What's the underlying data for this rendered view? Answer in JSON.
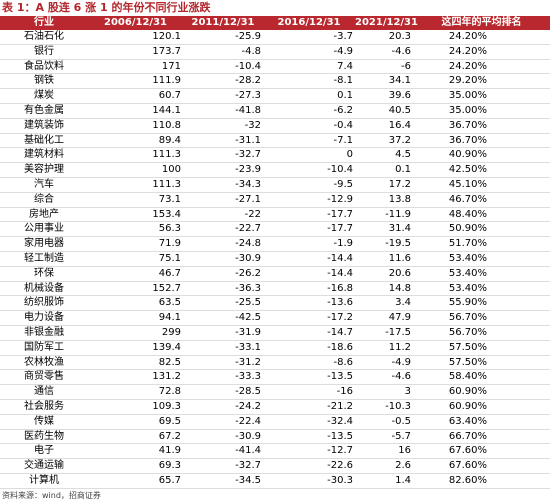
{
  "title": "表 1：A 股连 6 涨 1 的年份不同行业涨跌",
  "table": {
    "header": [
      "行业",
      "2006/12/31",
      "2011/12/31",
      "2016/12/31",
      "2021/12/31",
      "这四年的平均排名"
    ],
    "rows": [
      [
        "石油石化",
        "120.1",
        "-25.9",
        "-3.7",
        "20.3",
        "24.20%"
      ],
      [
        "银行",
        "173.7",
        "-4.8",
        "-4.9",
        "-4.6",
        "24.20%"
      ],
      [
        "食品饮料",
        "171",
        "-10.4",
        "7.4",
        "-6",
        "24.20%"
      ],
      [
        "钢铁",
        "111.9",
        "-28.2",
        "-8.1",
        "34.1",
        "29.20%"
      ],
      [
        "煤炭",
        "60.7",
        "-27.3",
        "0.1",
        "39.6",
        "35.00%"
      ],
      [
        "有色金属",
        "144.1",
        "-41.8",
        "-6.2",
        "40.5",
        "35.00%"
      ],
      [
        "建筑装饰",
        "110.8",
        "-32",
        "-0.4",
        "16.4",
        "36.70%"
      ],
      [
        "基础化工",
        "89.4",
        "-31.1",
        "-7.1",
        "37.2",
        "36.70%"
      ],
      [
        "建筑材料",
        "111.3",
        "-32.7",
        "0",
        "4.5",
        "40.90%"
      ],
      [
        "美容护理",
        "100",
        "-23.9",
        "-10.4",
        "0.1",
        "42.50%"
      ],
      [
        "汽车",
        "111.3",
        "-34.3",
        "-9.5",
        "17.2",
        "45.10%"
      ],
      [
        "综合",
        "73.1",
        "-27.1",
        "-12.9",
        "13.8",
        "46.70%"
      ],
      [
        "房地产",
        "153.4",
        "-22",
        "-17.7",
        "-11.9",
        "48.40%"
      ],
      [
        "公用事业",
        "56.3",
        "-22.7",
        "-17.7",
        "31.4",
        "50.90%"
      ],
      [
        "家用电器",
        "71.9",
        "-24.8",
        "-1.9",
        "-19.5",
        "51.70%"
      ],
      [
        "轻工制造",
        "75.1",
        "-30.9",
        "-14.4",
        "11.6",
        "53.40%"
      ],
      [
        "环保",
        "46.7",
        "-26.2",
        "-14.4",
        "20.6",
        "53.40%"
      ],
      [
        "机械设备",
        "152.7",
        "-36.3",
        "-16.8",
        "14.8",
        "53.40%"
      ],
      [
        "纺织服饰",
        "63.5",
        "-25.5",
        "-13.6",
        "3.4",
        "55.90%"
      ],
      [
        "电力设备",
        "94.1",
        "-42.5",
        "-17.2",
        "47.9",
        "56.70%"
      ],
      [
        "非银金融",
        "299",
        "-31.9",
        "-14.7",
        "-17.5",
        "56.70%"
      ],
      [
        "国防军工",
        "139.4",
        "-33.1",
        "-18.6",
        "11.2",
        "57.50%"
      ],
      [
        "农林牧渔",
        "82.5",
        "-31.2",
        "-8.6",
        "-4.9",
        "57.50%"
      ],
      [
        "商贸零售",
        "131.2",
        "-33.3",
        "-13.5",
        "-4.6",
        "58.40%"
      ],
      [
        "通信",
        "72.8",
        "-28.5",
        "-16",
        "3",
        "60.90%"
      ],
      [
        "社会服务",
        "109.3",
        "-24.2",
        "-21.2",
        "-10.3",
        "60.90%"
      ],
      [
        "传媒",
        "69.5",
        "-22.4",
        "-32.4",
        "-0.5",
        "63.40%"
      ],
      [
        "医药生物",
        "67.2",
        "-30.9",
        "-13.5",
        "-5.7",
        "66.70%"
      ],
      [
        "电子",
        "41.9",
        "-41.4",
        "-12.7",
        "16",
        "67.60%"
      ],
      [
        "交通运输",
        "69.3",
        "-32.7",
        "-22.6",
        "2.6",
        "67.60%"
      ],
      [
        "计算机",
        "65.7",
        "-34.5",
        "-30.3",
        "1.4",
        "82.60%"
      ]
    ]
  },
  "source": "资料来源：wind，招商证券"
}
